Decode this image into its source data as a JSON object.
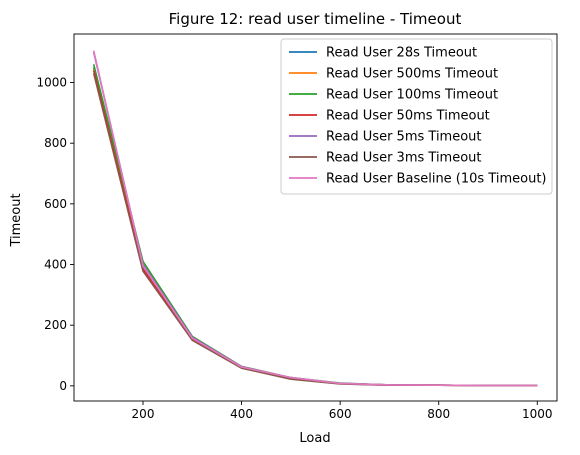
{
  "chart_data": {
    "type": "line",
    "title": "Figure 12: read user timeline - Timeout",
    "xlabel": "Load",
    "ylabel": "Timeout",
    "x": [
      100,
      200,
      300,
      400,
      500,
      600,
      700,
      800,
      900,
      1000
    ],
    "xlim": [
      60,
      1040
    ],
    "ylim": [
      -50,
      1160
    ],
    "xticks": [
      200,
      400,
      600,
      800,
      1000
    ],
    "yticks": [
      0,
      200,
      400,
      600,
      800,
      1000
    ],
    "grid": false,
    "legend_position": "top-right",
    "series": [
      {
        "name": "Read User 28s Timeout",
        "color": "#1f77b4",
        "values": [
          1050,
          390,
          155,
          62,
          26,
          8,
          3,
          2,
          1,
          1
        ]
      },
      {
        "name": "Read User 500ms Timeout",
        "color": "#ff7f0e",
        "values": [
          1045,
          395,
          158,
          63,
          27,
          8,
          3,
          2,
          1,
          1
        ]
      },
      {
        "name": "Read User 100ms Timeout",
        "color": "#2ca02c",
        "values": [
          1060,
          410,
          163,
          64,
          27,
          9,
          3,
          2,
          1,
          1
        ]
      },
      {
        "name": "Read User 50ms Timeout",
        "color": "#d62728",
        "values": [
          1040,
          385,
          152,
          60,
          24,
          7,
          2,
          2,
          1,
          1
        ]
      },
      {
        "name": "Read User 5ms Timeout",
        "color": "#9467bd",
        "values": [
          1100,
          400,
          160,
          63,
          27,
          8,
          3,
          2,
          1,
          1
        ]
      },
      {
        "name": "Read User 3ms Timeout",
        "color": "#8c564b",
        "values": [
          1030,
          378,
          150,
          58,
          22,
          6,
          2,
          2,
          1,
          1
        ]
      },
      {
        "name": "Read User Baseline (10s Timeout)",
        "color": "#e377c2",
        "values": [
          1105,
          395,
          157,
          62,
          27,
          8,
          3,
          2,
          1,
          1
        ]
      }
    ]
  }
}
